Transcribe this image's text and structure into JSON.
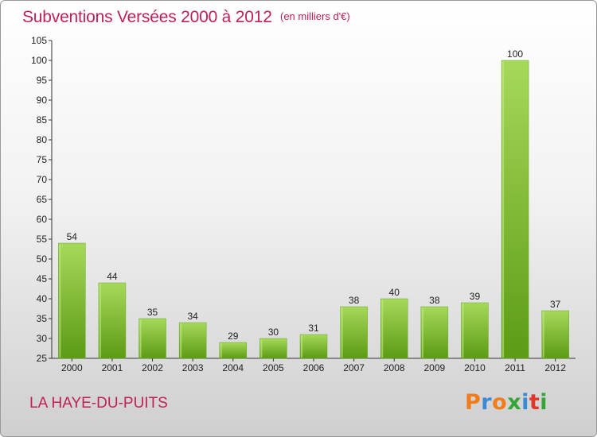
{
  "header": {
    "title": "Subventions Versées 2000 à 2012",
    "unit_note": "(en milliers d'€)"
  },
  "footer": {
    "commune": "LA HAYE-DU-PUITS",
    "logo_text": "Proxiti",
    "logo_colors": [
      "#f07d1a",
      "#3a8ad6",
      "#f07d1a",
      "#36a537",
      "#3a8ad6",
      "#e0362c",
      "#36a537"
    ]
  },
  "colors": {
    "title": "#c0205a",
    "bar_light": "#a6d95a",
    "bar_dark": "#5c9b14"
  },
  "chart_data": {
    "type": "bar",
    "title": "Subventions Versées 2000 à 2012",
    "xlabel": "",
    "ylabel": "",
    "categories": [
      "2000",
      "2001",
      "2002",
      "2003",
      "2004",
      "2005",
      "2006",
      "2007",
      "2008",
      "2009",
      "2010",
      "2011",
      "2012"
    ],
    "values": [
      54,
      44,
      35,
      34,
      29,
      30,
      31,
      38,
      40,
      38,
      39,
      100,
      37
    ],
    "ylim": [
      25,
      105
    ],
    "yticks": [
      25,
      30,
      35,
      40,
      45,
      50,
      55,
      60,
      65,
      70,
      75,
      80,
      85,
      90,
      95,
      100,
      105
    ],
    "grid": false,
    "data_labels": true
  }
}
